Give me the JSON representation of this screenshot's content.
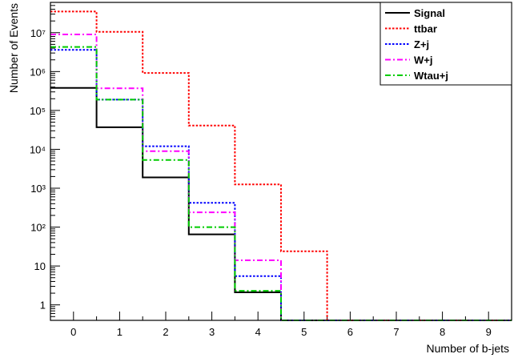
{
  "chart_data": {
    "type": "line",
    "title": "",
    "xlabel": "Number of b-jets",
    "ylabel": "Number of Events",
    "y_scale": "log",
    "xlim": [
      -0.5,
      9.5
    ],
    "ylim": [
      0.4,
      60000000
    ],
    "grid": false,
    "legend_position": "top-right",
    "x_ticks": [
      "0",
      "1",
      "2",
      "3",
      "4",
      "5",
      "6",
      "7",
      "8",
      "9"
    ],
    "y_ticks": [
      {
        "value": 1,
        "label": "1"
      },
      {
        "value": 10,
        "label": "10"
      },
      {
        "value": 100,
        "label": "10²"
      },
      {
        "value": 1000,
        "label": "10³"
      },
      {
        "value": 10000,
        "label": "10⁴"
      },
      {
        "value": 100000,
        "label": "10⁵"
      },
      {
        "value": 1000000,
        "label": "10⁶"
      },
      {
        "value": 10000000,
        "label": "10⁷"
      }
    ],
    "bins": [
      0,
      1,
      2,
      3,
      4,
      5,
      6,
      7,
      8,
      9
    ],
    "series": [
      {
        "name": "Signal",
        "color": "#000000",
        "dash": "solid",
        "values": [
          380000,
          37000,
          1900,
          65,
          2.1,
          0,
          0,
          0,
          0,
          0
        ]
      },
      {
        "name": "ttbar",
        "color": "#ff0000",
        "dash": "dotted",
        "values": [
          35000000,
          10500000,
          920000,
          41000,
          1250,
          24,
          0,
          0,
          0,
          0
        ]
      },
      {
        "name": "Z+j",
        "color": "#0000ff",
        "dash": "dotted",
        "values": [
          3600000,
          190000,
          12000,
          420,
          5.5,
          0,
          0,
          0,
          0,
          0
        ]
      },
      {
        "name": "W+j",
        "color": "#ff00ff",
        "dash": "dashdot",
        "values": [
          9000000,
          370000,
          9000,
          240,
          14,
          0,
          0,
          0,
          0,
          0
        ]
      },
      {
        "name": "Wtau+j",
        "color": "#00cc00",
        "dash": "dashdot",
        "values": [
          4300000,
          190000,
          5300,
          100,
          2.3,
          0,
          0,
          0,
          0,
          0
        ]
      }
    ]
  }
}
